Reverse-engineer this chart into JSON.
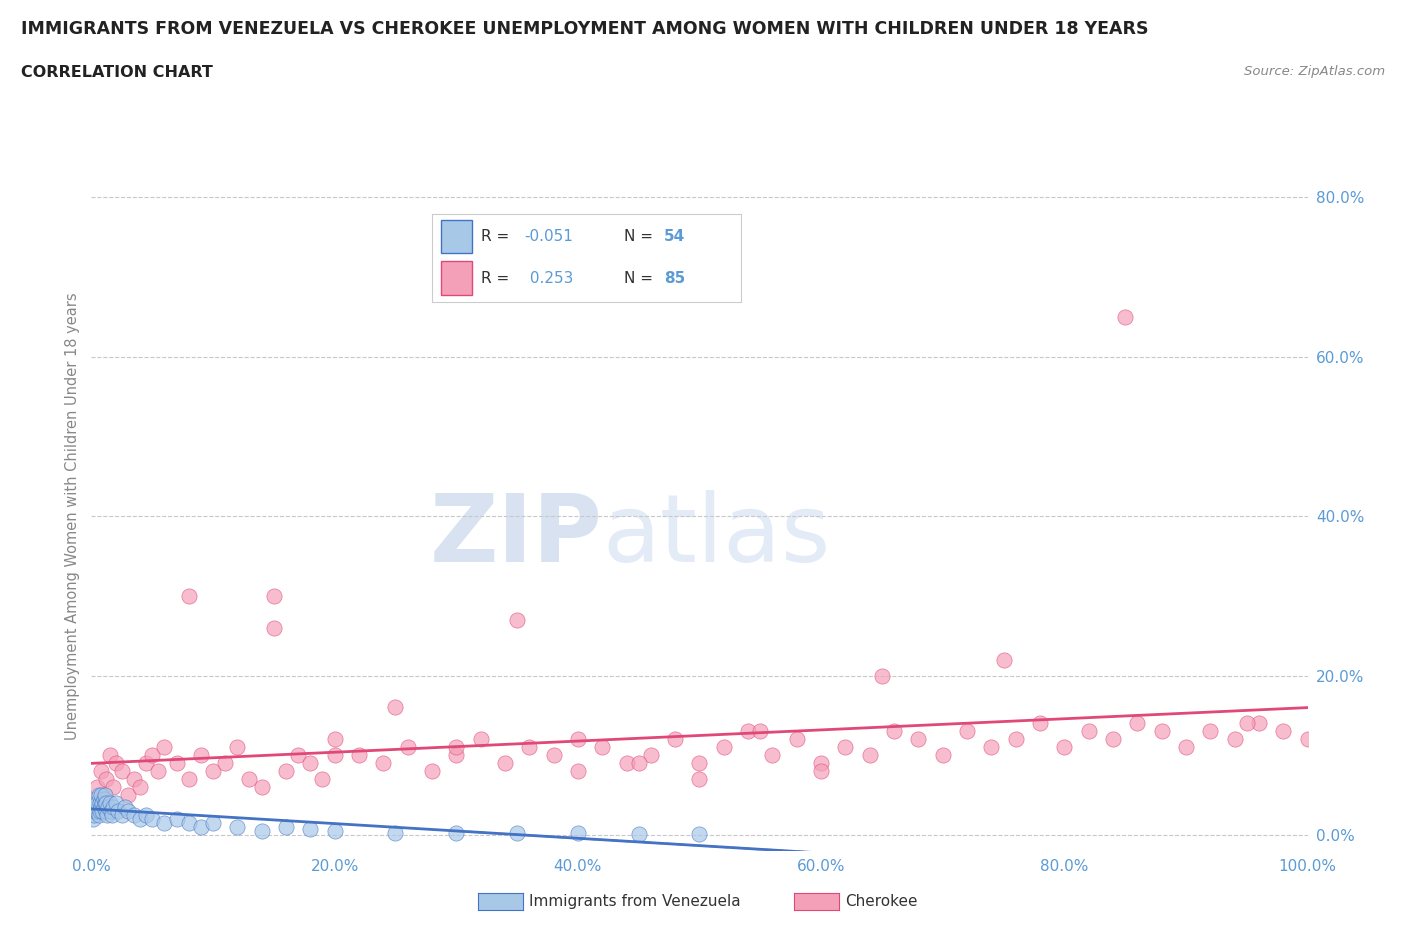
{
  "title": "IMMIGRANTS FROM VENEZUELA VS CHEROKEE UNEMPLOYMENT AMONG WOMEN WITH CHILDREN UNDER 18 YEARS",
  "subtitle": "CORRELATION CHART",
  "source": "Source: ZipAtlas.com",
  "ylabel": "Unemployment Among Women with Children Under 18 years",
  "xlim": [
    0.0,
    1.0
  ],
  "ylim": [
    -0.02,
    0.82
  ],
  "xticks": [
    0.0,
    0.2,
    0.4,
    0.6,
    0.8,
    1.0
  ],
  "xtick_labels": [
    "0.0%",
    "20.0%",
    "40.0%",
    "60.0%",
    "80.0%",
    "100.0%"
  ],
  "yticks_right": [
    0.0,
    0.2,
    0.4,
    0.6,
    0.8
  ],
  "ytick_labels_right": [
    "0.0%",
    "20.0%",
    "40.0%",
    "60.0%",
    "80.0%"
  ],
  "color_venezuela": "#A8C8E8",
  "color_cherokee": "#F4A0B8",
  "color_trend_venezuela": "#4472C4",
  "color_trend_cherokee": "#E04878",
  "watermark_zip": "ZIP",
  "watermark_atlas": "atlas",
  "background_color": "#FFFFFF",
  "grid_color": "#C8C8C8",
  "r_venezuela": -0.051,
  "r_cherokee": 0.253,
  "n_venezuela": 54,
  "n_cherokee": 85,
  "tick_color": "#5B9BD5",
  "legend_label1": "Immigrants from Venezuela",
  "legend_label2": "Cherokee",
  "venezuela_x": [
    0.001,
    0.002,
    0.002,
    0.003,
    0.003,
    0.004,
    0.004,
    0.005,
    0.005,
    0.006,
    0.006,
    0.007,
    0.007,
    0.008,
    0.008,
    0.009,
    0.009,
    0.01,
    0.01,
    0.011,
    0.011,
    0.012,
    0.012,
    0.013,
    0.014,
    0.015,
    0.016,
    0.017,
    0.018,
    0.02,
    0.022,
    0.025,
    0.028,
    0.03,
    0.035,
    0.04,
    0.045,
    0.05,
    0.06,
    0.07,
    0.08,
    0.09,
    0.1,
    0.12,
    0.14,
    0.16,
    0.18,
    0.2,
    0.25,
    0.3,
    0.35,
    0.4,
    0.45,
    0.5
  ],
  "venezuela_y": [
    0.02,
    0.03,
    0.025,
    0.04,
    0.03,
    0.035,
    0.045,
    0.03,
    0.04,
    0.025,
    0.05,
    0.03,
    0.04,
    0.035,
    0.05,
    0.04,
    0.03,
    0.045,
    0.035,
    0.04,
    0.05,
    0.03,
    0.04,
    0.025,
    0.035,
    0.04,
    0.03,
    0.025,
    0.035,
    0.04,
    0.03,
    0.025,
    0.035,
    0.03,
    0.025,
    0.02,
    0.025,
    0.02,
    0.015,
    0.02,
    0.015,
    0.01,
    0.015,
    0.01,
    0.005,
    0.01,
    0.008,
    0.005,
    0.003,
    0.003,
    0.002,
    0.002,
    0.001,
    0.001
  ],
  "cherokee_x": [
    0.002,
    0.005,
    0.008,
    0.01,
    0.012,
    0.015,
    0.018,
    0.02,
    0.025,
    0.03,
    0.035,
    0.04,
    0.045,
    0.05,
    0.055,
    0.06,
    0.07,
    0.08,
    0.09,
    0.1,
    0.11,
    0.12,
    0.13,
    0.14,
    0.15,
    0.16,
    0.17,
    0.18,
    0.19,
    0.2,
    0.22,
    0.24,
    0.26,
    0.28,
    0.3,
    0.32,
    0.34,
    0.36,
    0.38,
    0.4,
    0.42,
    0.44,
    0.46,
    0.48,
    0.5,
    0.52,
    0.54,
    0.56,
    0.58,
    0.6,
    0.62,
    0.64,
    0.66,
    0.68,
    0.7,
    0.72,
    0.74,
    0.76,
    0.78,
    0.8,
    0.82,
    0.84,
    0.86,
    0.88,
    0.9,
    0.92,
    0.94,
    0.96,
    0.98,
    1.0,
    0.15,
    0.08,
    0.25,
    0.35,
    0.45,
    0.55,
    0.65,
    0.75,
    0.85,
    0.95,
    0.2,
    0.3,
    0.4,
    0.5,
    0.6
  ],
  "cherokee_y": [
    0.04,
    0.06,
    0.08,
    0.05,
    0.07,
    0.1,
    0.06,
    0.09,
    0.08,
    0.05,
    0.07,
    0.06,
    0.09,
    0.1,
    0.08,
    0.11,
    0.09,
    0.07,
    0.1,
    0.08,
    0.09,
    0.11,
    0.07,
    0.06,
    0.3,
    0.08,
    0.1,
    0.09,
    0.07,
    0.12,
    0.1,
    0.09,
    0.11,
    0.08,
    0.1,
    0.12,
    0.09,
    0.11,
    0.1,
    0.08,
    0.11,
    0.09,
    0.1,
    0.12,
    0.09,
    0.11,
    0.13,
    0.1,
    0.12,
    0.09,
    0.11,
    0.1,
    0.13,
    0.12,
    0.1,
    0.13,
    0.11,
    0.12,
    0.14,
    0.11,
    0.13,
    0.12,
    0.14,
    0.13,
    0.11,
    0.13,
    0.12,
    0.14,
    0.13,
    0.12,
    0.26,
    0.3,
    0.16,
    0.27,
    0.09,
    0.13,
    0.2,
    0.22,
    0.65,
    0.14,
    0.1,
    0.11,
    0.12,
    0.07,
    0.08
  ]
}
